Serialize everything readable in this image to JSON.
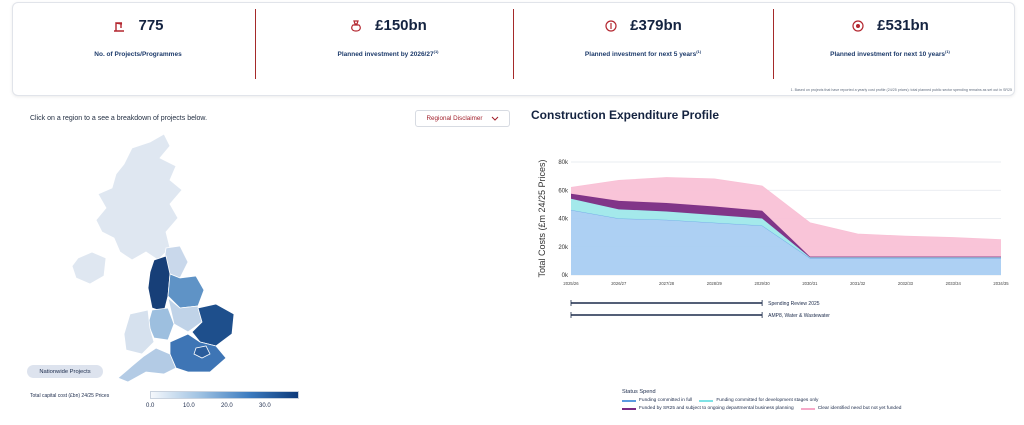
{
  "kpis": [
    {
      "value": "775",
      "label": "No. of Projects/Programmes",
      "sup": "",
      "icon": "crane-icon"
    },
    {
      "value": "£150bn",
      "label": "Planned investment by 2026/27",
      "sup": "(1)",
      "icon": "money-bag-icon"
    },
    {
      "value": "£379bn",
      "label": "Planned investment for next 5 years",
      "sup": "(1)",
      "icon": "coin-icon"
    },
    {
      "value": "£531bn",
      "label": "Planned investment for next 10 years",
      "sup": "(1)",
      "icon": "coin-stack-icon"
    }
  ],
  "footnote": "1. Based on projects that have reported a yearly cost profile (24/25 prices): total planned public sector spending remains as set out in SR25",
  "map": {
    "hint": "Click on a region to a see a breakdown of projects below.",
    "disclaimer_label": "Regional Disclaimer",
    "nationwide_label": "Nationwide Projects",
    "legend_label": "Total capital cost (£bn) 24/25 Prices",
    "legend_ticks": [
      "0.0",
      "10.0",
      "20.0",
      "30.0"
    ]
  },
  "chart": {
    "title": "Construction Expenditure Profile",
    "status_title": "Status Spend",
    "legend": [
      {
        "label": "Funding committed in full",
        "color": "#5b9be0"
      },
      {
        "label": "Funding committed for development stages only",
        "color": "#7fe3e6"
      },
      {
        "label": "Funded by SR25 and subject to ongoing departmental business planning",
        "color": "#7a2a82"
      },
      {
        "label": "Clear identified need but not yet funded",
        "color": "#f6a9c8"
      }
    ],
    "timeline": [
      {
        "label": "Spending Review 2025"
      },
      {
        "label": "AMP8, Water & Wastewater"
      }
    ]
  },
  "chart_data": {
    "type": "area",
    "title": "Construction Expenditure Profile",
    "xlabel": "",
    "ylabel": "Total Costs (£m 24/25 Prices)",
    "x": [
      "2025/26",
      "2026/27",
      "2027/28",
      "2028/29",
      "2029/30",
      "2030/31",
      "2031/32",
      "2032/33",
      "2033/34",
      "2034/35"
    ],
    "ylim": [
      0,
      80000
    ],
    "yticks": [
      "0k",
      "20k",
      "40k",
      "60k",
      "80k"
    ],
    "stacked": true,
    "series": [
      {
        "name": "Funding committed in full",
        "color": "#a9cdf2",
        "values": [
          46000,
          40000,
          39000,
          37000,
          35000,
          12000,
          12000,
          12000,
          12000,
          12000
        ]
      },
      {
        "name": "Funding committed for development stages only",
        "color": "#9fe8ea",
        "values": [
          8000,
          6500,
          6000,
          5500,
          5000,
          500,
          500,
          500,
          500,
          500
        ]
      },
      {
        "name": "Funded by SR25 and subject to ongoing departmental business planning",
        "color": "#7a2a82",
        "values": [
          3500,
          6000,
          6000,
          6000,
          5500,
          500,
          500,
          500,
          500,
          500
        ]
      },
      {
        "name": "Clear identified need but not yet funded",
        "color": "#f9c1d6",
        "values": [
          4500,
          14500,
          18000,
          19500,
          17500,
          24000,
          16000,
          14500,
          13500,
          12000
        ]
      }
    ],
    "grid": true
  }
}
